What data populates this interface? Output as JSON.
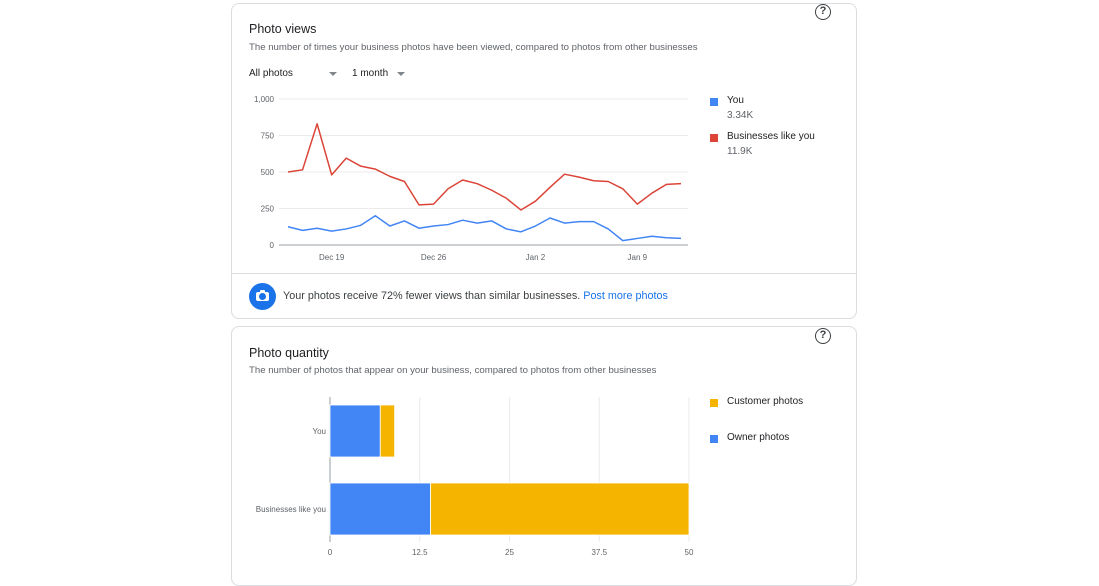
{
  "photo_views": {
    "title": "Photo views",
    "subtitle": "The number of times your business photos have been viewed, compared to photos from other businesses",
    "filter_label": "All photos",
    "period_label": "1 month",
    "legend": [
      {
        "label": "You",
        "value": "3.34K",
        "color": "#4285f4"
      },
      {
        "label": "Businesses like you",
        "value": "11.9K",
        "color": "#db4437"
      }
    ],
    "insight_text": "Your photos receive 72% fewer views than similar businesses.",
    "insight_link": "Post more photos"
  },
  "photo_quantity": {
    "title": "Photo quantity",
    "subtitle": "The number of photos that appear on your business, compared to photos from other businesses",
    "legend": [
      {
        "label": "Customer photos",
        "color": "#f4b400"
      },
      {
        "label": "Owner photos",
        "color": "#4285f4"
      }
    ]
  },
  "chart_data": [
    {
      "type": "line",
      "xlabel": "",
      "ylabel": "",
      "ylim": [
        0,
        1000
      ],
      "y_ticks": [
        "0",
        "250",
        "500",
        "750",
        "1,000"
      ],
      "x_tick_labels": [
        "Dec 19",
        "Dec 26",
        "Jan 2",
        "Jan 9"
      ],
      "x_tick_index": [
        3,
        10,
        17,
        24
      ],
      "grid": true,
      "legend_position": "right",
      "series": [
        {
          "name": "Businesses like you",
          "color": "#db4437",
          "values": [
            500,
            515,
            830,
            480,
            595,
            540,
            520,
            470,
            435,
            275,
            280,
            385,
            445,
            420,
            375,
            320,
            240,
            300,
            395,
            485,
            465,
            440,
            435,
            385,
            280,
            355,
            415,
            420
          ]
        },
        {
          "name": "You",
          "color": "#4285f4",
          "values": [
            125,
            100,
            115,
            95,
            110,
            135,
            200,
            130,
            165,
            115,
            130,
            140,
            170,
            150,
            165,
            110,
            90,
            130,
            185,
            150,
            160,
            160,
            110,
            30,
            45,
            60,
            50,
            45
          ]
        }
      ]
    },
    {
      "type": "bar",
      "orientation": "horizontal",
      "stacked": true,
      "categories": [
        "You",
        "Businesses like you"
      ],
      "xlim": [
        0,
        50
      ],
      "x_ticks": [
        "0",
        "12.5",
        "25",
        "37.5",
        "50"
      ],
      "grid": true,
      "legend_position": "right",
      "series": [
        {
          "name": "Owner photos",
          "color": "#4285f4",
          "values": [
            7,
            14
          ]
        },
        {
          "name": "Customer photos",
          "color": "#f4b400",
          "values": [
            2,
            36
          ]
        }
      ]
    }
  ]
}
